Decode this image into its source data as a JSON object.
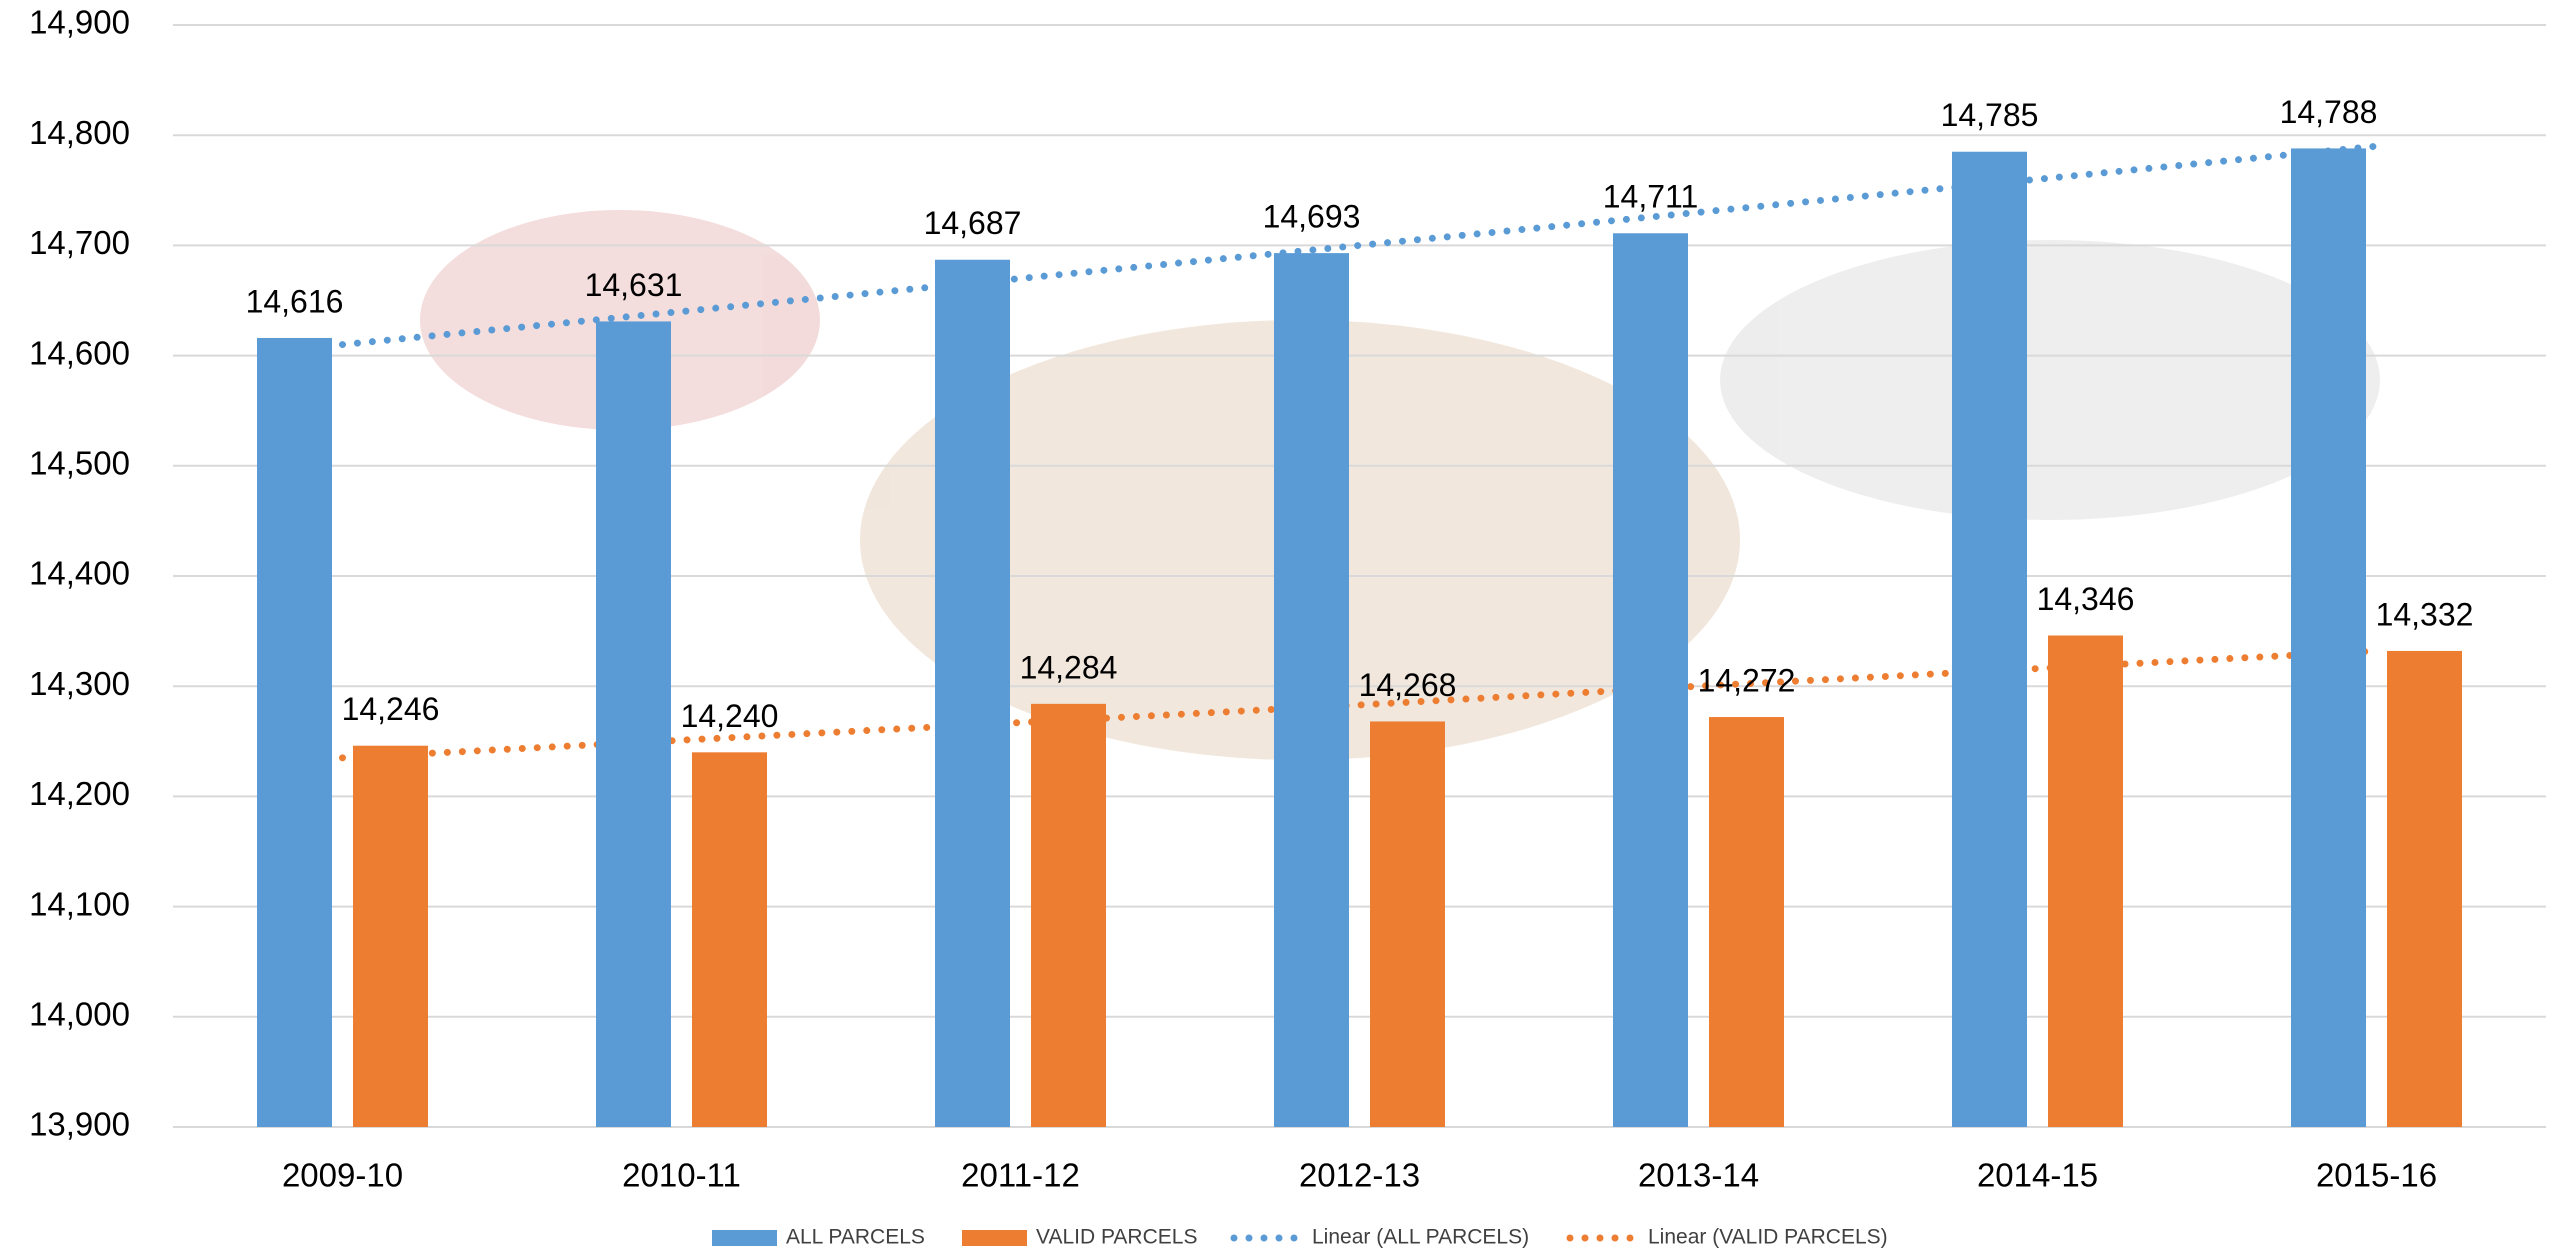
{
  "chart_data": {
    "type": "bar",
    "categories": [
      "2009-10",
      "2010-11",
      "2011-12",
      "2012-13",
      "2013-14",
      "2014-15",
      "2015-16"
    ],
    "series": [
      {
        "name": "ALL PARCELS",
        "color": "#5b9bd5",
        "type": "bar",
        "values": [
          14616,
          14631,
          14687,
          14693,
          14711,
          14785,
          14788
        ],
        "value_labels": [
          "14,616",
          "14,631",
          "14,687",
          "14,693",
          "14,711",
          "14,785",
          "14,788"
        ]
      },
      {
        "name": "VALID PARCELS",
        "color": "#ed7d31",
        "type": "bar",
        "values": [
          14246,
          14240,
          14284,
          14268,
          14272,
          14346,
          14332
        ],
        "value_labels": [
          "14,246",
          "14,240",
          "14,284",
          "14,268",
          "14,272",
          "14,346",
          "14,332"
        ]
      },
      {
        "name": "Linear (ALL PARCELS)",
        "color": "#5b9bd5",
        "type": "line",
        "values": [
          14610,
          14640,
          14670,
          14700,
          14730,
          14760,
          14790
        ]
      },
      {
        "name": "Linear (VALID PARCELS)",
        "color": "#ed7d31",
        "type": "line",
        "values": [
          14235,
          14251,
          14267,
          14283,
          14300,
          14316,
          14332
        ]
      }
    ],
    "ylim": [
      13900,
      14900
    ],
    "yticks": [
      {
        "value": 13900,
        "label": "13,900"
      },
      {
        "value": 14000,
        "label": "14,000"
      },
      {
        "value": 14100,
        "label": "14,100"
      },
      {
        "value": 14200,
        "label": "14,200"
      },
      {
        "value": 14300,
        "label": "14,300"
      },
      {
        "value": 14400,
        "label": "14,400"
      },
      {
        "value": 14500,
        "label": "14,500"
      },
      {
        "value": 14600,
        "label": "14,600"
      },
      {
        "value": 14700,
        "label": "14,700"
      },
      {
        "value": 14800,
        "label": "14,800"
      },
      {
        "value": 14900,
        "label": "14,900"
      }
    ],
    "grid": true,
    "legend": "bottom"
  }
}
